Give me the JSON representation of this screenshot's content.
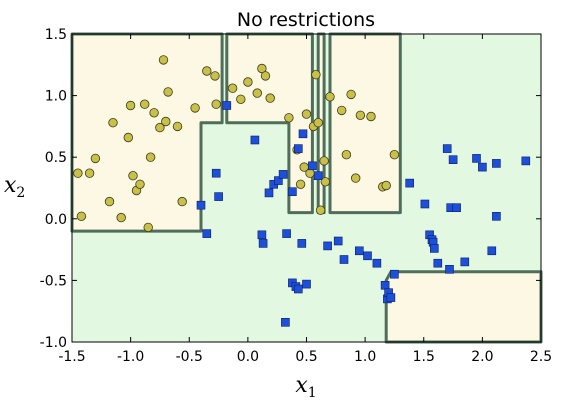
{
  "chart_data": {
    "type": "scatter",
    "title": "No restrictions",
    "xlabel": "x",
    "xlabel_sub": "1",
    "ylabel": "x",
    "ylabel_sub": "2",
    "xlim": [
      -1.5,
      2.5
    ],
    "ylim": [
      -1.0,
      1.5
    ],
    "xticks": [
      "-1.5",
      "-1.0",
      "-0.5",
      "0.0",
      "0.5",
      "1.0",
      "1.5",
      "2.0",
      "2.5"
    ],
    "xtick_values": [
      -1.5,
      -1.0,
      -0.5,
      0.0,
      0.5,
      1.0,
      1.5,
      2.0,
      2.5
    ],
    "yticks": [
      "-1.0",
      "-0.5",
      "0.0",
      "0.5",
      "1.0",
      "1.5"
    ],
    "ytick_values": [
      -1.0,
      -0.5,
      0.0,
      0.5,
      1.0,
      1.5
    ],
    "grid": false,
    "colors": {
      "class0_region": "#fdf8e4",
      "class1_region": "#e3f8e1",
      "boundary": "#4f6e5a",
      "class0_marker": "#c9c04a",
      "class1_marker": "#1d4fd8"
    },
    "class0_regions": [
      [
        [
          -1.5,
          -0.1
        ],
        [
          -0.4,
          -0.1
        ],
        [
          -0.4,
          0.78
        ],
        [
          -0.22,
          0.78
        ],
        [
          -0.22,
          1.5
        ],
        [
          -1.5,
          1.5
        ]
      ],
      [
        [
          -0.18,
          1.5
        ],
        [
          -0.18,
          0.78
        ],
        [
          0.35,
          0.78
        ],
        [
          0.35,
          0.05
        ],
        [
          0.55,
          0.05
        ],
        [
          0.55,
          1.5
        ]
      ],
      [
        [
          0.6,
          1.5
        ],
        [
          0.6,
          0.05
        ],
        [
          0.65,
          0.05
        ],
        [
          0.65,
          1.5
        ]
      ],
      [
        [
          0.7,
          1.5
        ],
        [
          0.7,
          0.05
        ],
        [
          1.3,
          0.05
        ],
        [
          1.3,
          1.5
        ]
      ],
      [
        [
          1.18,
          -1.0
        ],
        [
          1.18,
          -0.5
        ],
        [
          1.22,
          -0.43
        ],
        [
          2.5,
          -0.43
        ],
        [
          2.5,
          -1.0
        ]
      ]
    ],
    "series": [
      {
        "marker": "circle",
        "points": [
          [
            -1.45,
            0.37
          ],
          [
            -1.42,
            0.02
          ],
          [
            -1.35,
            0.37
          ],
          [
            -1.3,
            0.49
          ],
          [
            -1.18,
            0.14
          ],
          [
            -1.15,
            0.78
          ],
          [
            -1.08,
            0.01
          ],
          [
            -1.02,
            0.66
          ],
          [
            -1.0,
            0.92
          ],
          [
            -0.98,
            0.35
          ],
          [
            -0.95,
            0.23
          ],
          [
            -0.92,
            0.28
          ],
          [
            -0.88,
            0.93
          ],
          [
            -0.85,
            -0.07
          ],
          [
            -0.83,
            0.5
          ],
          [
            -0.8,
            0.86
          ],
          [
            -0.75,
            0.74
          ],
          [
            -0.72,
            1.29
          ],
          [
            -0.7,
            0.79
          ],
          [
            -0.68,
            1.03
          ],
          [
            -0.6,
            0.75
          ],
          [
            -0.56,
            0.14
          ],
          [
            -0.45,
            0.9
          ],
          [
            -0.35,
            1.2
          ],
          [
            -0.28,
            1.16
          ],
          [
            -0.27,
            0.93
          ],
          [
            -0.13,
            1.06
          ],
          [
            -0.06,
            0.97
          ],
          [
            0.0,
            1.11
          ],
          [
            0.08,
            1.02
          ],
          [
            0.12,
            1.22
          ],
          [
            0.15,
            1.16
          ],
          [
            0.19,
            0.98
          ],
          [
            0.35,
            0.82
          ],
          [
            0.42,
            0.56
          ],
          [
            0.45,
            0.28
          ],
          [
            0.48,
            0.42
          ],
          [
            0.5,
            0.85
          ],
          [
            0.53,
            0.37
          ],
          [
            0.56,
            0.75
          ],
          [
            0.58,
            1.17
          ],
          [
            0.6,
            0.78
          ],
          [
            0.62,
            0.07
          ],
          [
            0.65,
            0.47
          ],
          [
            0.66,
            0.3
          ],
          [
            0.7,
            0.99
          ],
          [
            0.8,
            0.88
          ],
          [
            0.84,
            0.52
          ],
          [
            0.88,
            1.01
          ],
          [
            0.92,
            0.33
          ],
          [
            0.96,
            0.84
          ],
          [
            1.05,
            0.83
          ],
          [
            1.15,
            0.26
          ],
          [
            1.18,
            0.27
          ],
          [
            1.25,
            0.52
          ]
        ]
      },
      {
        "marker": "square",
        "points": [
          [
            -0.4,
            0.11
          ],
          [
            -0.35,
            -0.12
          ],
          [
            -0.27,
            0.37
          ],
          [
            -0.25,
            0.18
          ],
          [
            -0.18,
            0.92
          ],
          [
            0.06,
            0.64
          ],
          [
            0.12,
            -0.13
          ],
          [
            0.13,
            -0.2
          ],
          [
            0.18,
            0.21
          ],
          [
            0.22,
            0.28
          ],
          [
            0.26,
            0.31
          ],
          [
            0.3,
            0.36
          ],
          [
            0.32,
            -0.84
          ],
          [
            0.33,
            -0.12
          ],
          [
            0.38,
            -0.52
          ],
          [
            0.38,
            0.22
          ],
          [
            0.41,
            -0.55
          ],
          [
            0.43,
            -0.57
          ],
          [
            0.43,
            0.57
          ],
          [
            0.46,
            -0.2
          ],
          [
            0.47,
            0.69
          ],
          [
            0.5,
            -0.53
          ],
          [
            0.55,
            0.43
          ],
          [
            0.6,
            0.35
          ],
          [
            0.68,
            -0.22
          ],
          [
            0.77,
            -0.18
          ],
          [
            0.82,
            -0.33
          ],
          [
            0.95,
            -0.26
          ],
          [
            1.02,
            -0.3
          ],
          [
            1.1,
            -0.36
          ],
          [
            1.17,
            -0.54
          ],
          [
            1.19,
            -0.65
          ],
          [
            1.2,
            -0.6
          ],
          [
            1.22,
            -0.64
          ],
          [
            1.25,
            -0.45
          ],
          [
            1.38,
            0.29
          ],
          [
            1.51,
            0.12
          ],
          [
            1.55,
            -0.13
          ],
          [
            1.57,
            -0.17
          ],
          [
            1.58,
            -0.19
          ],
          [
            1.59,
            -0.24
          ],
          [
            1.62,
            -0.36
          ],
          [
            1.7,
            0.57
          ],
          [
            1.72,
            -0.41
          ],
          [
            1.73,
            0.09
          ],
          [
            1.75,
            0.48
          ],
          [
            1.78,
            0.09
          ],
          [
            1.85,
            -0.35
          ],
          [
            1.95,
            0.49
          ],
          [
            2.0,
            0.42
          ],
          [
            2.08,
            -0.26
          ],
          [
            2.12,
            0.02
          ],
          [
            2.12,
            0.45
          ],
          [
            2.37,
            0.47
          ]
        ]
      }
    ]
  }
}
